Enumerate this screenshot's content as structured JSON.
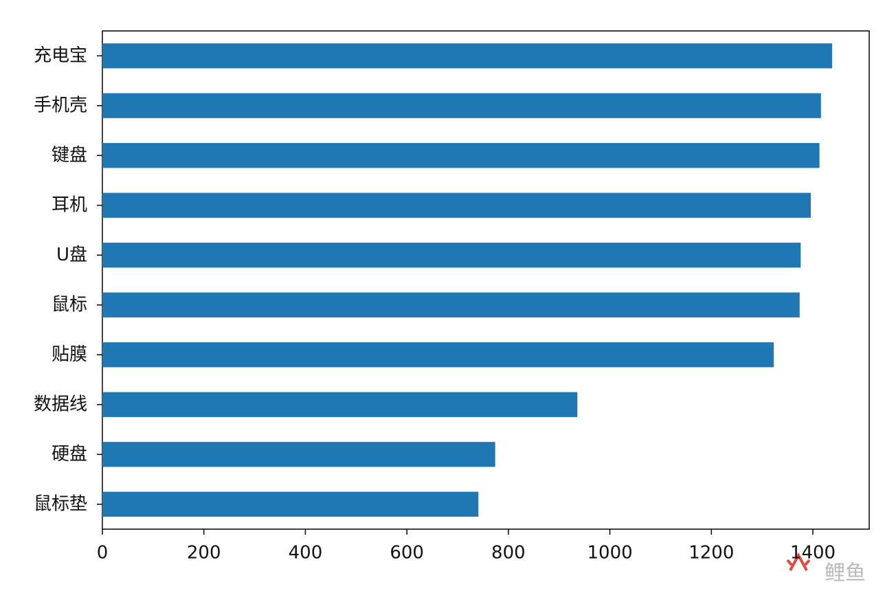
{
  "chart_data": {
    "type": "bar",
    "orientation": "horizontal",
    "categories": [
      "充电宝",
      "手机壳",
      "键盘",
      "耳机",
      "U盘",
      "鼠标",
      "贴膜",
      "数据线",
      "硬盘",
      "鼠标垫"
    ],
    "values": [
      1438,
      1416,
      1413,
      1396,
      1376,
      1374,
      1323,
      936,
      774,
      741
    ],
    "color": "#1f77b4",
    "xlim": [
      0,
      1511
    ],
    "xticks": [
      0,
      200,
      400,
      600,
      800,
      1000,
      1200,
      1400
    ],
    "grid": false,
    "watermark": "鲤鱼"
  }
}
